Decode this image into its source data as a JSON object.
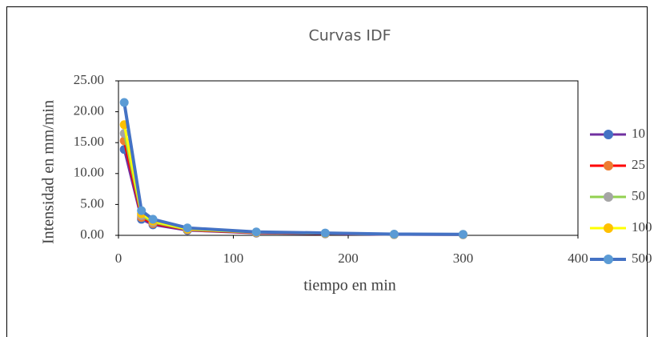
{
  "chart_data": {
    "type": "line",
    "title": "Curvas IDF",
    "x_label": "tiempo en min",
    "y_label": "Intensidad en mm/min",
    "x": [
      5,
      20,
      30,
      60,
      120,
      180,
      240,
      300
    ],
    "series": [
      {
        "name": "10",
        "color": "#7030a0",
        "marker_color": "#4472c4",
        "values": [
          13.9,
          2.6,
          1.7,
          0.8,
          0.35,
          0.25,
          0.12,
          0.1
        ]
      },
      {
        "name": "25",
        "color": "#ff0000",
        "marker_color": "#ed7d31",
        "values": [
          15.3,
          2.9,
          1.9,
          0.9,
          0.4,
          0.28,
          0.14,
          0.11
        ]
      },
      {
        "name": "50",
        "color": "#92d050",
        "marker_color": "#a5a5a5",
        "values": [
          16.5,
          3.2,
          2.1,
          0.95,
          0.45,
          0.3,
          0.15,
          0.12
        ]
      },
      {
        "name": "100",
        "color": "#ffff00",
        "marker_color": "#ffc000",
        "values": [
          17.9,
          3.5,
          2.3,
          1.0,
          0.5,
          0.33,
          0.17,
          0.14
        ]
      },
      {
        "name": "500",
        "color": "#4472c4",
        "marker_color": "#5b9bd5",
        "values": [
          21.5,
          4.0,
          2.6,
          1.2,
          0.55,
          0.38,
          0.2,
          0.16
        ]
      }
    ],
    "xlim": [
      0,
      400
    ],
    "xticks": [
      0,
      100,
      200,
      300,
      400
    ],
    "ylim": [
      0,
      25
    ],
    "yticks": [
      {
        "value": 0,
        "label": "0.00"
      },
      {
        "value": 5,
        "label": "5.00"
      },
      {
        "value": 10,
        "label": "10.00"
      },
      {
        "value": 15,
        "label": "15.00"
      },
      {
        "value": 20,
        "label": "20.00"
      },
      {
        "value": 25,
        "label": "25.00"
      }
    ],
    "legend": "right"
  }
}
